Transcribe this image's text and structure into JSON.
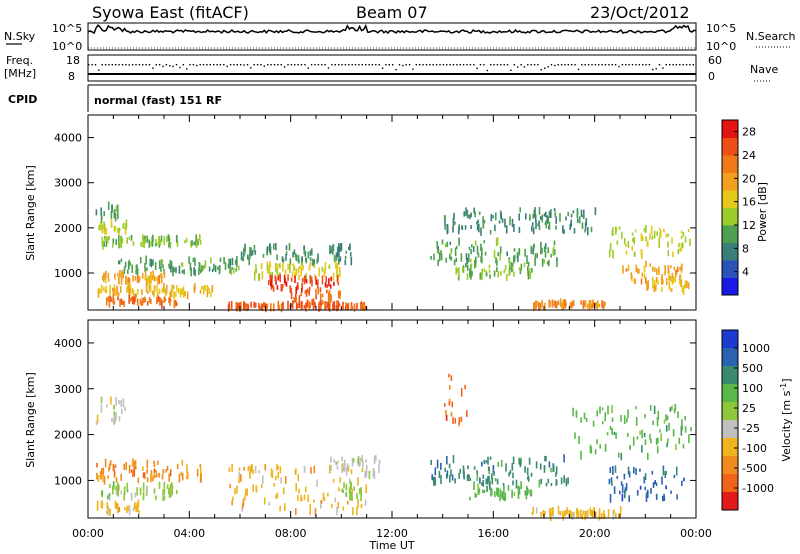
{
  "header": {
    "title": "Syowa East (fitACF)",
    "beam": "Beam 07",
    "date": "23/Oct/2012"
  },
  "status_panels": {
    "nsky_label": "N.Sky",
    "nsky_ticks": [
      "10^5",
      "10^0"
    ],
    "nsearch_label": "N.Search",
    "nsearch_ticks": [
      "10^5",
      "10^0"
    ],
    "freq_label": "Freq.",
    "freq_unit": "[MHz]",
    "freq_ticks": [
      "18",
      "8"
    ],
    "nave_label": "Nave",
    "nave_ticks": [
      "60",
      "0"
    ],
    "cpid_label": "CPID",
    "cpid_text": "normal (fast) 151 RF"
  },
  "colors": {
    "power_scale": [
      "#1a1ae6",
      "#2a52b8",
      "#3b7e78",
      "#4da050",
      "#9ccc2c",
      "#e6c81a",
      "#f0a01e",
      "#f07a1a",
      "#ee4e18",
      "#e41414"
    ],
    "velocity_scale": [
      "#1a3ad0",
      "#2a64b0",
      "#3a8a70",
      "#5ab848",
      "#8cc83a",
      "#c0c0c0",
      "#f0b41e",
      "#f08c1e",
      "#f0641a",
      "#e21a1a"
    ]
  },
  "chart_data": [
    {
      "type": "heatmap",
      "name": "power",
      "xlabel": "",
      "ylabel": "Slant Range [km]",
      "ylim": [
        180,
        4500
      ],
      "xlim": [
        0,
        24
      ],
      "y_ticks": [
        "1000",
        "2000",
        "3000",
        "4000"
      ],
      "colorbar": {
        "label": "Power [dB]",
        "ticks": [
          "4",
          "8",
          "12",
          "16",
          "20",
          "24",
          "28"
        ],
        "range": [
          0,
          30
        ]
      },
      "blobs": [
        {
          "t": [
            0.3,
            1.5
          ],
          "r": [
            1900,
            2100
          ],
          "v": 14
        },
        {
          "t": [
            0.3,
            1.2
          ],
          "r": [
            2200,
            2500
          ],
          "v": 10
        },
        {
          "t": [
            0.5,
            4.5
          ],
          "r": [
            1600,
            1800
          ],
          "v": 12
        },
        {
          "t": [
            1.0,
            6.0
          ],
          "r": [
            1000,
            1300
          ],
          "v": 10
        },
        {
          "t": [
            0.3,
            3.0
          ],
          "r": [
            800,
            1000
          ],
          "v": 20
        },
        {
          "t": [
            0.3,
            5.0
          ],
          "r": [
            500,
            700
          ],
          "v": 18
        },
        {
          "t": [
            0.5,
            3.5
          ],
          "r": [
            300,
            450
          ],
          "v": 24
        },
        {
          "t": [
            5.5,
            11.0
          ],
          "r": [
            220,
            300
          ],
          "v": 26
        },
        {
          "t": [
            6.0,
            10.5
          ],
          "r": [
            1200,
            1600
          ],
          "v": 8
        },
        {
          "t": [
            6.5,
            10.0
          ],
          "r": [
            900,
            1200
          ],
          "v": 16
        },
        {
          "t": [
            7.0,
            10.0
          ],
          "r": [
            600,
            900
          ],
          "v": 28
        },
        {
          "t": [
            8.0,
            10.0
          ],
          "r": [
            300,
            600
          ],
          "v": 24
        },
        {
          "t": [
            13.5,
            18.5
          ],
          "r": [
            1200,
            1700
          ],
          "v": 10
        },
        {
          "t": [
            14.0,
            20.0
          ],
          "r": [
            1900,
            2400
          ],
          "v": 8
        },
        {
          "t": [
            14.5,
            17.5
          ],
          "r": [
            900,
            1200
          ],
          "v": 12
        },
        {
          "t": [
            17.5,
            20.5
          ],
          "r": [
            250,
            350
          ],
          "v": 22
        },
        {
          "t": [
            20.5,
            23.8
          ],
          "r": [
            1400,
            2000
          ],
          "v": 14
        },
        {
          "t": [
            21.0,
            23.5
          ],
          "r": [
            800,
            1200
          ],
          "v": 20
        },
        {
          "t": [
            22.0,
            23.8
          ],
          "r": [
            600,
            900
          ],
          "v": 18
        }
      ]
    },
    {
      "type": "heatmap",
      "name": "velocity",
      "xlabel": "Time UT",
      "ylabel": "Slant Range [km]",
      "ylim": [
        180,
        4500
      ],
      "xlim": [
        0,
        24
      ],
      "x_ticks": [
        "00:00",
        "04:00",
        "08:00",
        "12:00",
        "16:00",
        "20:00",
        "00:00"
      ],
      "y_ticks": [
        "1000",
        "2000",
        "3000",
        "4000"
      ],
      "colorbar": {
        "label": "Velocity [m s-1]",
        "label_text": "Velocity",
        "label_unit": "[m s",
        "label_exp": "-1",
        "label_close": "]",
        "ticks": [
          "1000",
          "500",
          "100",
          "25",
          "-25",
          "-100",
          "-500",
          "-1000"
        ]
      },
      "blobs": [
        {
          "t": [
            0.3,
            1.5
          ],
          "r": [
            2200,
            2800
          ],
          "v": 5
        },
        {
          "t": [
            0.3,
            4.5
          ],
          "r": [
            1000,
            1400
          ],
          "v": 7
        },
        {
          "t": [
            0.5,
            3.5
          ],
          "r": [
            600,
            900
          ],
          "v": 4
        },
        {
          "t": [
            0.3,
            2.0
          ],
          "r": [
            300,
            500
          ],
          "v": 6
        },
        {
          "t": [
            5.5,
            11.0
          ],
          "r": [
            300,
            1300
          ],
          "v": 6
        },
        {
          "t": [
            9.5,
            11.5
          ],
          "r": [
            1100,
            1500
          ],
          "v": 5
        },
        {
          "t": [
            10.0,
            11.0
          ],
          "r": [
            600,
            900
          ],
          "v": 4
        },
        {
          "t": [
            14.0,
            15.0
          ],
          "r": [
            2200,
            3300
          ],
          "v": 8
        },
        {
          "t": [
            13.5,
            19.0
          ],
          "r": [
            900,
            1500
          ],
          "v": 2
        },
        {
          "t": [
            15.0,
            17.5
          ],
          "r": [
            600,
            900
          ],
          "v": 3
        },
        {
          "t": [
            17.5,
            21.0
          ],
          "r": [
            200,
            350
          ],
          "v": 6
        },
        {
          "t": [
            19.0,
            23.8
          ],
          "r": [
            1500,
            2600
          ],
          "v": 3
        },
        {
          "t": [
            20.5,
            23.5
          ],
          "r": [
            600,
            1300
          ],
          "v": 1
        }
      ]
    }
  ]
}
